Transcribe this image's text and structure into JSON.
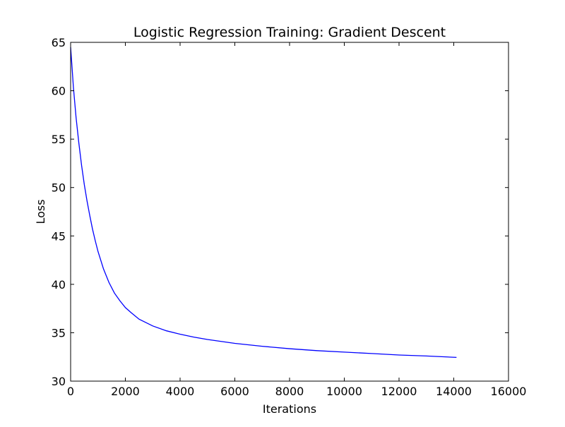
{
  "chart_data": {
    "type": "line",
    "title": "Logistic Regression Training: Gradient Descent",
    "xlabel": "Iterations",
    "ylabel": "Loss",
    "xlim": [
      0,
      16000
    ],
    "ylim": [
      30,
      65
    ],
    "xticks": [
      0,
      2000,
      4000,
      6000,
      8000,
      10000,
      12000,
      14000,
      16000
    ],
    "yticks": [
      30,
      35,
      40,
      45,
      50,
      55,
      60,
      65
    ],
    "grid": false,
    "legend": "none",
    "series": [
      {
        "color": "#0000ff",
        "x": [
          0,
          50,
          100,
          200,
          300,
          400,
          500,
          600,
          700,
          800,
          900,
          1000,
          1200,
          1400,
          1600,
          1800,
          2000,
          2200,
          2500,
          3000,
          3500,
          4000,
          4500,
          5000,
          5500,
          6000,
          7000,
          8000,
          9000,
          10000,
          11000,
          12000,
          13000,
          14100
        ],
        "y": [
          64.5,
          62.5,
          60.4,
          57.2,
          54.6,
          52.3,
          50.3,
          48.6,
          47.1,
          45.7,
          44.5,
          43.4,
          41.6,
          40.2,
          39.1,
          38.3,
          37.6,
          37.1,
          36.4,
          35.7,
          35.2,
          34.85,
          34.55,
          34.3,
          34.1,
          33.9,
          33.6,
          33.35,
          33.15,
          33.0,
          32.85,
          32.7,
          32.6,
          32.45
        ]
      }
    ]
  }
}
